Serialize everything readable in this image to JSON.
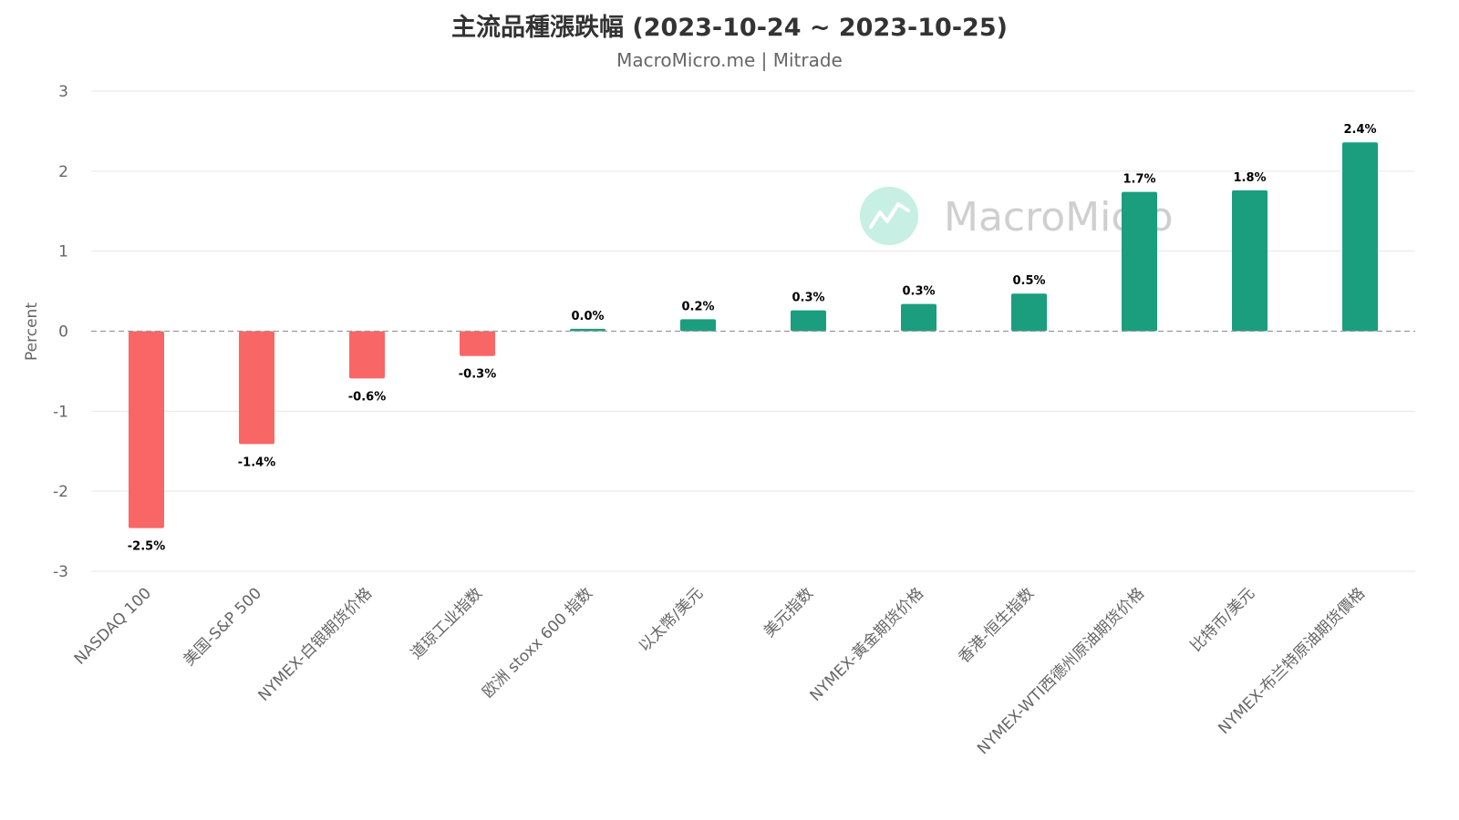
{
  "chart_data": {
    "type": "bar",
    "title": "主流品種漲跌幅 (2023-10-24 ~ 2023-10-25)",
    "subtitle": "MacroMicro.me | Mitrade",
    "ylabel": "Percent",
    "ylim": [
      -3,
      3
    ],
    "yticks": [
      3,
      2,
      1,
      0,
      -1,
      -2,
      -3
    ],
    "grid": true,
    "zero_line": "dashed",
    "categories": [
      "NASDAQ 100",
      "美国-S&P 500",
      "NYMEX-白银期货价格",
      "道琼工业指数",
      "欧洲 stoxx 600 指数",
      "以太幣/美元",
      "美元指数",
      "NYMEX-黃金期货价格",
      "香港-恒生指数",
      "NYMEX-WTI西德州原油期货价格",
      "比特币/美元",
      "NYMEX-布兰特原油期货價格"
    ],
    "values": [
      -2.46,
      -1.41,
      -0.59,
      -0.31,
      0.03,
      0.15,
      0.26,
      0.34,
      0.47,
      1.74,
      1.76,
      2.36
    ],
    "data_labels": [
      "-2.5%",
      "-1.4%",
      "-0.6%",
      "-0.3%",
      "0.0%",
      "0.2%",
      "0.3%",
      "0.3%",
      "0.5%",
      "1.7%",
      "1.8%",
      "2.4%"
    ],
    "colors": {
      "positive": "#1a9e7e",
      "negative": "#f96666",
      "grid": "#e6e6e6",
      "zero_line": "#999999"
    }
  },
  "watermark": {
    "text": "MacroMicro",
    "icon": "macromicro-logo-icon"
  }
}
